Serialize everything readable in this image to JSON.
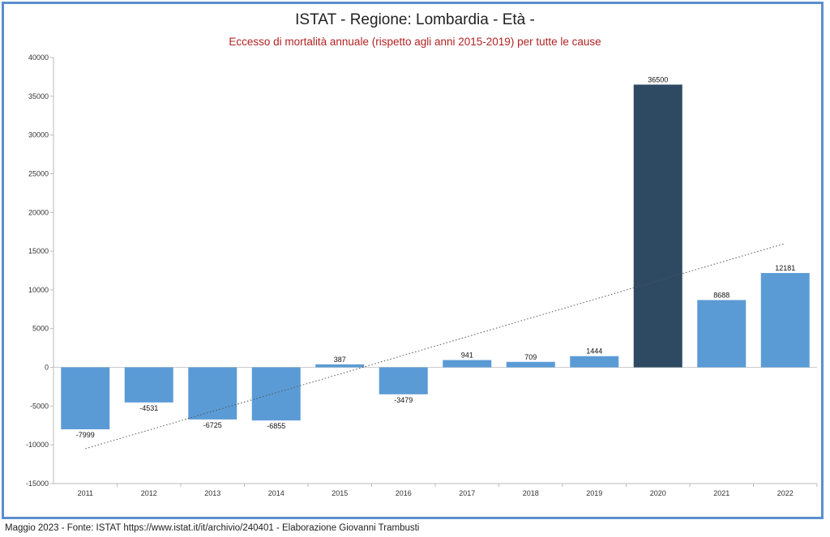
{
  "title": "ISTAT - Regione: Lombardia - Età -",
  "subtitle": "Eccesso di mortalità annuale (rispetto agli anni 2015-2019) per tutte le cause",
  "footer": "Maggio 2023 - Fonte: ISTAT https://www.istat.it/it/archivio/240401 - Elaborazione Giovanni Trambusti",
  "chart_data": {
    "type": "bar",
    "title": "ISTAT - Regione: Lombardia - Età -",
    "subtitle": "Eccesso di mortalità annuale (rispetto agli anni 2015-2019) per tutte le cause",
    "categories": [
      "2011",
      "2012",
      "2013",
      "2014",
      "2015",
      "2016",
      "2017",
      "2018",
      "2019",
      "2020",
      "2021",
      "2022"
    ],
    "values": [
      -7999,
      -4531,
      -6725,
      -6855,
      387,
      -3479,
      941,
      709,
      1444,
      36500,
      8688,
      12181
    ],
    "highlight": "2020",
    "ylim": [
      -15000,
      40000
    ],
    "yticks": [
      -15000,
      -10000,
      -5000,
      0,
      5000,
      10000,
      15000,
      20000,
      25000,
      30000,
      35000,
      40000
    ],
    "trendline": {
      "type": "linear",
      "start": -10500,
      "end": 16000
    },
    "colors": {
      "bar": "#5b9bd5",
      "highlight": "#2e4a62",
      "trend": "#555555"
    },
    "grid": false,
    "legend": "none"
  }
}
